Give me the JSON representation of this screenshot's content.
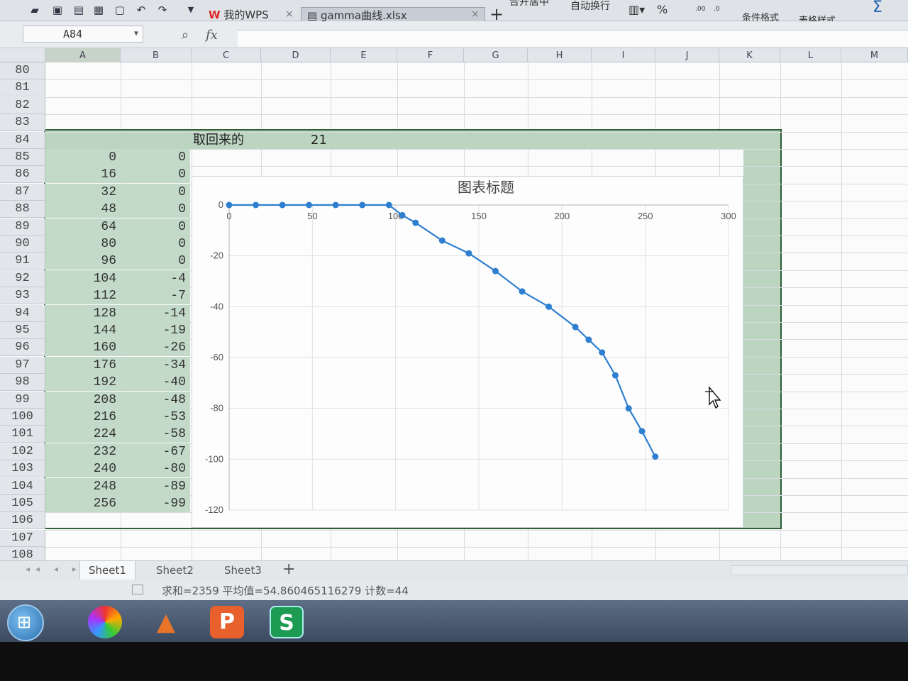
{
  "window": {
    "tabs": [
      {
        "label": "我的WPS"
      },
      {
        "label": "gamma曲线.xlsx"
      }
    ],
    "ribbon": {
      "merge_center": "合并居中",
      "wrap_text": "自动换行",
      "percent": "%",
      "cond_format": "条件格式",
      "table_style": "表格样式",
      "sum": "求和"
    }
  },
  "formula_bar": {
    "name_box": "A84",
    "fx": "fx",
    "content": ""
  },
  "columns": [
    "A",
    "B",
    "C",
    "D",
    "E",
    "F",
    "G",
    "H",
    "I",
    "J",
    "K",
    "L",
    "M"
  ],
  "rows": [
    "80",
    "81",
    "82",
    "83",
    "84",
    "85",
    "86",
    "87",
    "88",
    "89",
    "90",
    "91",
    "92",
    "93",
    "94",
    "95",
    "96",
    "97",
    "98",
    "99",
    "100",
    "101",
    "102",
    "103",
    "104",
    "105",
    "106",
    "107",
    "108"
  ],
  "cells": {
    "C84": "取回来的",
    "D84": "21"
  },
  "table": {
    "colA": [
      "0",
      "16",
      "32",
      "48",
      "64",
      "80",
      "96",
      "104",
      "112",
      "128",
      "144",
      "160",
      "176",
      "192",
      "208",
      "216",
      "224",
      "232",
      "240",
      "248",
      "256"
    ],
    "colB": [
      "0",
      "0",
      "0",
      "0",
      "0",
      "0",
      "0",
      "-4",
      "-7",
      "-14",
      "-19",
      "-26",
      "-34",
      "-40",
      "-48",
      "-53",
      "-58",
      "-67",
      "-80",
      "-89",
      "-99"
    ]
  },
  "chart_data": {
    "type": "scatter",
    "title": "图表标题",
    "x": [
      0,
      16,
      32,
      48,
      64,
      80,
      96,
      104,
      112,
      128,
      144,
      160,
      176,
      192,
      208,
      216,
      224,
      232,
      240,
      248,
      256
    ],
    "series": [
      {
        "values": [
          0,
          0,
          0,
          0,
          0,
          0,
          0,
          -4,
          -7,
          -14,
          -19,
          -26,
          -34,
          -40,
          -48,
          -53,
          -58,
          -67,
          -80,
          -89,
          -99
        ]
      }
    ],
    "xlim": [
      0,
      300
    ],
    "ylim": [
      -120,
      0
    ],
    "xticks": [
      "0",
      "50",
      "100",
      "150",
      "200",
      "250",
      "300"
    ],
    "yticks": [
      "0",
      "-20",
      "-40",
      "-60",
      "-80",
      "-100",
      "-120"
    ],
    "grid": true,
    "line_color": "#2e7fd0"
  },
  "sheets": [
    {
      "label": "Sheet1"
    },
    {
      "label": "Sheet2"
    },
    {
      "label": "Sheet3"
    }
  ],
  "status": {
    "text": "求和=2359  平均值=54.860465116279  计数=44"
  },
  "taskbar": {
    "apps": [
      "start-icon",
      "photos-icon",
      "matlab-icon",
      "wps-presentation-icon",
      "wps-spreadsheet-icon"
    ]
  }
}
